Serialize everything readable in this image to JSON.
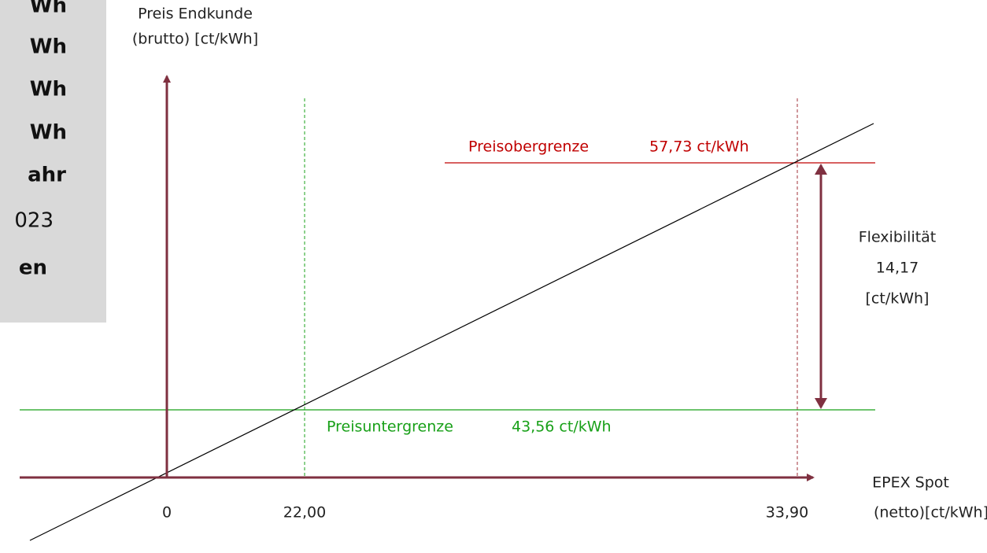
{
  "side_panel": {
    "lines": [
      "Wh",
      "Wh",
      "Wh",
      "Wh",
      "ahr",
      "023",
      "en"
    ]
  },
  "y_axis": {
    "label_line1": "Preis Endkunde",
    "label_line2": "(brutto) [ct/kWh]"
  },
  "x_axis": {
    "label_line1": "EPEX Spot",
    "label_line2": "(netto)[ct/kWh]",
    "ticks": [
      "0",
      "22,00",
      "33,90"
    ]
  },
  "upper_limit": {
    "name": "Preisobergrenze",
    "value": "57,73 ct/kWh"
  },
  "lower_limit": {
    "name": "Preisuntergrenze",
    "value": "43,56 ct/kWh"
  },
  "flexibility": {
    "title": "Flexibilität",
    "value": "14,17",
    "unit": "[ct/kWh]"
  }
}
